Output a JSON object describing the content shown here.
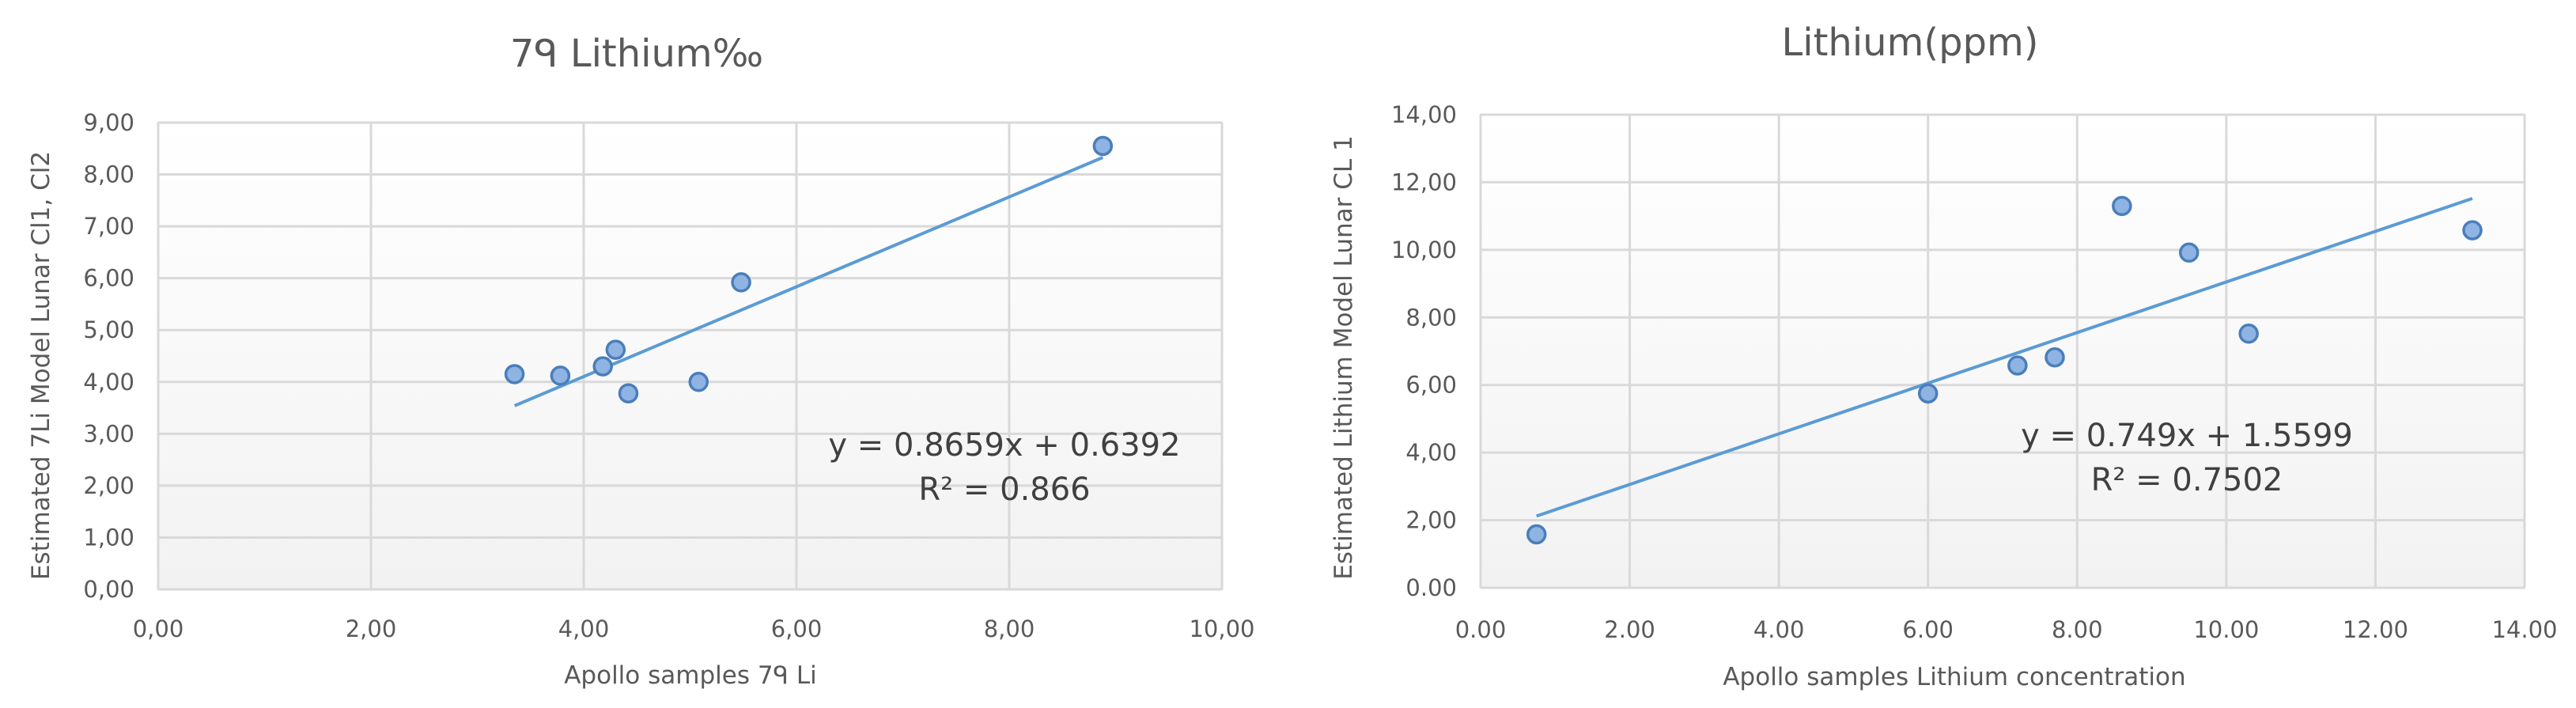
{
  "chart_data": [
    {
      "type": "scatter",
      "title": "7ᑫ Lithium‰",
      "xlabel": "Apollo samples 7ᑫ Li",
      "ylabel": "Estimated 7Li Model Lunar Cl1, Cl2",
      "xlim": [
        0,
        10
      ],
      "ylim": [
        0,
        9
      ],
      "x_ticks": [
        "0,00",
        "2,00",
        "4,00",
        "6,00",
        "8,00",
        "10,00"
      ],
      "y_ticks": [
        "0,00",
        "1,00",
        "2,00",
        "3,00",
        "4,00",
        "5,00",
        "6,00",
        "7,00",
        "8,00",
        "9,00"
      ],
      "grid": true,
      "points": [
        {
          "x": 3.35,
          "y": 4.15
        },
        {
          "x": 3.78,
          "y": 4.12
        },
        {
          "x": 4.18,
          "y": 4.3
        },
        {
          "x": 4.3,
          "y": 4.62
        },
        {
          "x": 4.42,
          "y": 3.78
        },
        {
          "x": 5.08,
          "y": 4.0
        },
        {
          "x": 5.48,
          "y": 5.92
        },
        {
          "x": 8.88,
          "y": 8.55
        }
      ],
      "trendline": {
        "slope": 0.8659,
        "intercept": 0.6392,
        "x_range": [
          3.35,
          8.88
        ]
      },
      "equation": "y = 0.8659x + 0.6392",
      "r_squared": "R² = 0.866",
      "colors": {
        "marker_fill": "#8fb4e3",
        "marker_stroke": "#4a7ebb",
        "trendline": "#5b9bd5",
        "grid": "#d9d9d9",
        "plot_bg": "#f2f2f2"
      }
    },
    {
      "type": "scatter",
      "title": "Lithium(ppm)",
      "xlabel": "Apollo samples Lithium concentration",
      "ylabel": "Estimated Lithium Model Lunar CL 1",
      "xlim": [
        0,
        14
      ],
      "ylim": [
        0,
        14
      ],
      "x_ticks": [
        "0.00",
        "2.00",
        "4.00",
        "6.00",
        "8.00",
        "10.00",
        "12.00",
        "14.00"
      ],
      "y_ticks": [
        "0.00",
        "2,00",
        "4,00",
        "6,00",
        "8,00",
        "10,00",
        "12,00",
        "14,00"
      ],
      "grid": true,
      "points": [
        {
          "x": 0.75,
          "y": 1.58
        },
        {
          "x": 6.0,
          "y": 5.75
        },
        {
          "x": 7.2,
          "y": 6.58
        },
        {
          "x": 7.7,
          "y": 6.82
        },
        {
          "x": 8.6,
          "y": 11.3
        },
        {
          "x": 9.5,
          "y": 9.92
        },
        {
          "x": 10.3,
          "y": 7.52
        },
        {
          "x": 13.3,
          "y": 10.58
        }
      ],
      "trendline": {
        "slope": 0.749,
        "intercept": 1.5599,
        "x_range": [
          0.75,
          13.3
        ]
      },
      "equation": "y = 0.749x + 1.5599",
      "r_squared": "R² = 0.7502",
      "colors": {
        "marker_fill": "#8fb4e3",
        "marker_stroke": "#4a7ebb",
        "trendline": "#5b9bd5",
        "grid": "#d9d9d9",
        "plot_bg": "#f2f2f2"
      }
    }
  ]
}
